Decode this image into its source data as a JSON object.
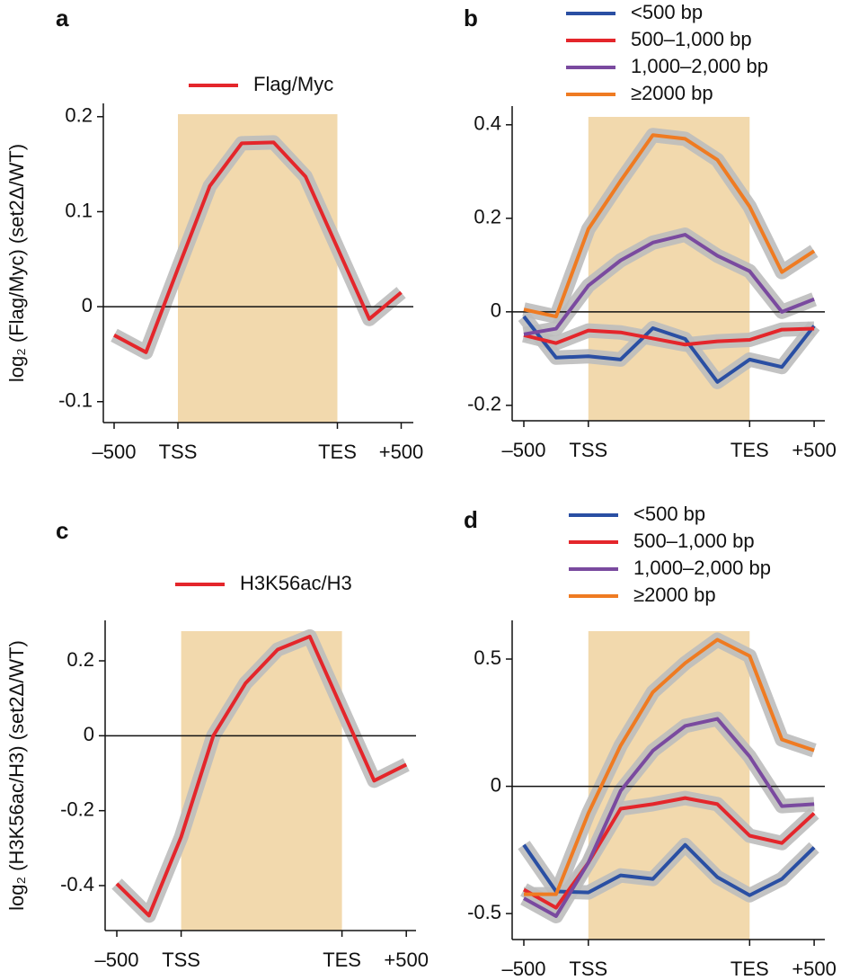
{
  "chart_data": [
    {
      "type": "line",
      "label": "a",
      "ylabel": "log₂ (Flag/Myc) (set2Δ/WT)",
      "categories": [
        "–500",
        null,
        "TSS",
        null,
        null,
        null,
        null,
        "TES",
        null,
        "+500"
      ],
      "series": [
        {
          "name": "Flag/Myc",
          "color": "#e4262b",
          "values": [
            -0.03,
            -0.048,
            0.04,
            0.127,
            0.172,
            0.173,
            0.137,
            0.062,
            -0.013,
            0.015
          ]
        }
      ],
      "ylim": [
        -0.122,
        0.214
      ],
      "yticks": [
        -0.1,
        0,
        0.1,
        0.2
      ],
      "reference_line": 0
    },
    {
      "type": "line",
      "label": "b",
      "categories": [
        "–500",
        null,
        "TSS",
        null,
        null,
        null,
        null,
        "TES",
        null,
        "+500"
      ],
      "series": [
        {
          "name": "<500 bp",
          "color": "#2a4fa3",
          "values": [
            -0.01,
            -0.098,
            -0.095,
            -0.102,
            -0.035,
            -0.058,
            -0.15,
            -0.102,
            -0.118,
            -0.03
          ]
        },
        {
          "name": "500–1,000 bp",
          "color": "#e4262b",
          "values": [
            -0.05,
            -0.067,
            -0.04,
            -0.044,
            -0.057,
            -0.07,
            -0.063,
            -0.06,
            -0.038,
            -0.036
          ]
        },
        {
          "name": "1,000–2,000 bp",
          "color": "#7a4a9f",
          "values": [
            -0.048,
            -0.036,
            0.056,
            0.11,
            0.148,
            0.165,
            0.12,
            0.087,
            0.0,
            0.027
          ]
        },
        {
          "name": "≥2000 bp",
          "color": "#ef7b22",
          "values": [
            0.005,
            -0.01,
            0.177,
            0.28,
            0.378,
            0.37,
            0.325,
            0.225,
            0.085,
            0.13
          ]
        }
      ],
      "ylim": [
        -0.233,
        0.44
      ],
      "yticks": [
        -0.2,
        0,
        0.2,
        0.4
      ],
      "reference_line": 0
    },
    {
      "type": "line",
      "label": "c",
      "ylabel": "log₂ (H3K56ac/H3) (set2Δ/WT)",
      "categories": [
        "–500",
        null,
        "TSS",
        null,
        null,
        null,
        null,
        "TES",
        null,
        "+500"
      ],
      "series": [
        {
          "name": "H3K56ac/H3",
          "color": "#e4262b",
          "values": [
            -0.395,
            -0.48,
            -0.27,
            0.0,
            0.14,
            0.23,
            0.265,
            0.072,
            -0.12,
            -0.077
          ]
        }
      ],
      "ylim": [
        -0.52,
        0.308
      ],
      "yticks": [
        -0.4,
        -0.2,
        0,
        0.2
      ],
      "reference_line": 0
    },
    {
      "type": "line",
      "label": "d",
      "categories": [
        "–500",
        null,
        "TSS",
        null,
        null,
        null,
        null,
        "TES",
        null,
        "+500"
      ],
      "series": [
        {
          "name": "<500 bp",
          "color": "#2a4fa3",
          "values": [
            -0.23,
            -0.413,
            -0.417,
            -0.35,
            -0.364,
            -0.23,
            -0.357,
            -0.428,
            -0.364,
            -0.24
          ]
        },
        {
          "name": "500–1,000 bp",
          "color": "#e4262b",
          "values": [
            -0.406,
            -0.477,
            -0.3,
            -0.088,
            -0.07,
            -0.046,
            -0.07,
            -0.194,
            -0.223,
            -0.106
          ]
        },
        {
          "name": "1,000–2,000 bp",
          "color": "#7a4a9f",
          "values": [
            -0.44,
            -0.51,
            -0.3,
            -0.018,
            0.14,
            0.237,
            0.265,
            0.117,
            -0.078,
            -0.07
          ]
        },
        {
          "name": "≥2000 bp",
          "color": "#ef7b22",
          "values": [
            -0.424,
            -0.424,
            -0.106,
            0.16,
            0.37,
            0.484,
            0.576,
            0.512,
            0.184,
            0.141
          ]
        }
      ],
      "ylim": [
        -0.602,
        0.652
      ],
      "yticks": [
        -0.5,
        0,
        0.5
      ],
      "reference_line": 0
    }
  ]
}
